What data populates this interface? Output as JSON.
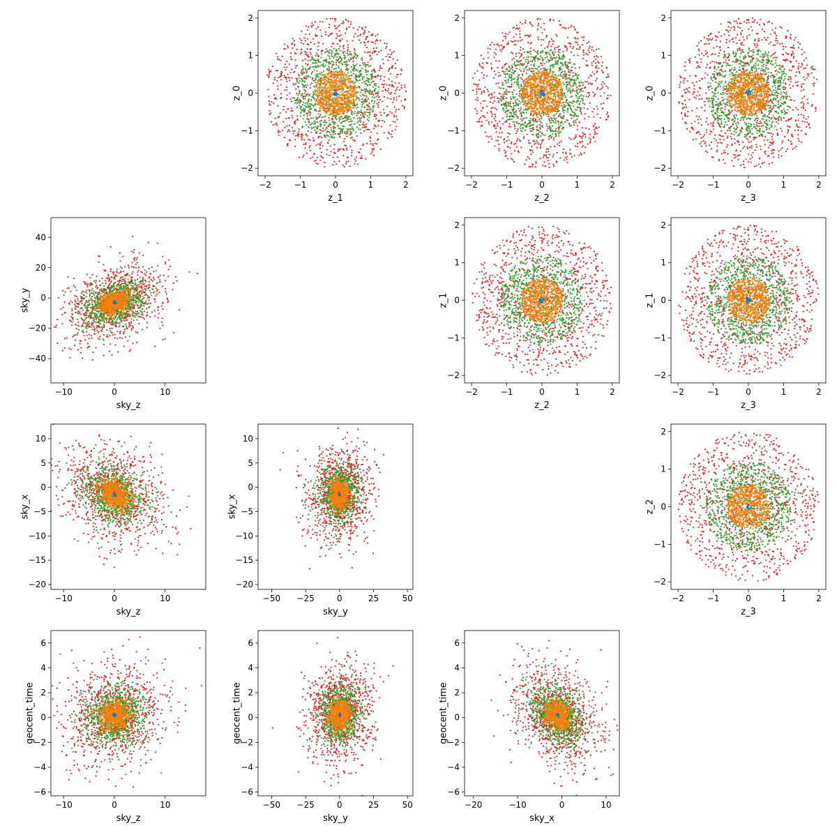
{
  "colors": {
    "series": [
      "#1f77b4",
      "#ff7f0e",
      "#2ca02c",
      "#d62728"
    ]
  },
  "chart_data": {
    "type": "scatter",
    "layout": "corner-plot",
    "grid": false,
    "series": [
      {
        "key": "s0",
        "color": "#1f77b4",
        "spread": 0.04,
        "count": 20
      },
      {
        "key": "s1",
        "color": "#ff7f0e",
        "spread": 0.3,
        "count": 700
      },
      {
        "key": "s2",
        "color": "#2ca02c",
        "spread": 0.6,
        "count": 800
      },
      {
        "key": "s3",
        "color": "#d62728",
        "spread": 1.0,
        "count": 1000
      }
    ],
    "panels": [
      {
        "id": "z0-z1",
        "row": 0,
        "col": 1,
        "x_label": "z_1",
        "y_label": "z_0",
        "xlim": [
          -2.2,
          2.2
        ],
        "ylim": [
          -2.2,
          2.2
        ],
        "xticks": [
          -2,
          -1,
          0,
          1,
          2
        ],
        "yticks": [
          -2,
          -1,
          0,
          1,
          2
        ],
        "shape": "disc",
        "center": [
          0,
          0
        ],
        "radius": 2.0
      },
      {
        "id": "z0-z2",
        "row": 0,
        "col": 2,
        "x_label": "z_2",
        "y_label": "z_0",
        "xlim": [
          -2.2,
          2.2
        ],
        "ylim": [
          -2.2,
          2.2
        ],
        "xticks": [
          -2,
          -1,
          0,
          1,
          2
        ],
        "yticks": [
          -2,
          -1,
          0,
          1,
          2
        ],
        "shape": "disc",
        "center": [
          0,
          0
        ],
        "radius": 2.0
      },
      {
        "id": "z0-z3",
        "row": 0,
        "col": 3,
        "x_label": "z_3",
        "y_label": "z_0",
        "xlim": [
          -2.2,
          2.2
        ],
        "ylim": [
          -2.2,
          2.2
        ],
        "xticks": [
          -2,
          -1,
          0,
          1,
          2
        ],
        "yticks": [
          -2,
          -1,
          0,
          1,
          2
        ],
        "shape": "disc",
        "center": [
          0,
          0
        ],
        "radius": 2.0
      },
      {
        "id": "skyy-skyz",
        "row": 1,
        "col": 0,
        "x_label": "sky_z",
        "y_label": "sky_y",
        "xlim": [
          -12.5,
          18
        ],
        "ylim": [
          -56,
          53
        ],
        "xticks": [
          -10,
          0,
          10
        ],
        "yticks": [
          -40,
          -20,
          0,
          20,
          40
        ],
        "shape": "blob",
        "center": [
          0,
          -3
        ],
        "scale": [
          5,
          13
        ],
        "corr": 0.35
      },
      {
        "id": "z1-z2",
        "row": 1,
        "col": 2,
        "x_label": "z_2",
        "y_label": "z_1",
        "xlim": [
          -2.2,
          2.2
        ],
        "ylim": [
          -2.2,
          2.2
        ],
        "xticks": [
          -2,
          -1,
          0,
          1,
          2
        ],
        "yticks": [
          -2,
          -1,
          0,
          1,
          2
        ],
        "shape": "disc",
        "center": [
          0,
          0
        ],
        "radius": 2.0
      },
      {
        "id": "z1-z3",
        "row": 1,
        "col": 3,
        "x_label": "z_3",
        "y_label": "z_1",
        "xlim": [
          -2.2,
          2.2
        ],
        "ylim": [
          -2.2,
          2.2
        ],
        "xticks": [
          -2,
          -1,
          0,
          1,
          2
        ],
        "yticks": [
          -2,
          -1,
          0,
          1,
          2
        ],
        "shape": "disc",
        "center": [
          0,
          0
        ],
        "radius": 2.0
      },
      {
        "id": "skyx-skyz",
        "row": 2,
        "col": 0,
        "x_label": "sky_z",
        "y_label": "sky_x",
        "xlim": [
          -12.5,
          18
        ],
        "ylim": [
          -21,
          13
        ],
        "xticks": [
          -10,
          0,
          10
        ],
        "yticks": [
          -20,
          -15,
          -10,
          -5,
          0,
          5,
          10
        ],
        "shape": "blob",
        "center": [
          0,
          -1.5
        ],
        "scale": [
          5,
          5
        ],
        "corr": -0.25
      },
      {
        "id": "skyx-skyy",
        "row": 2,
        "col": 1,
        "x_label": "sky_y",
        "y_label": "sky_x",
        "xlim": [
          -60,
          54
        ],
        "ylim": [
          -21,
          13
        ],
        "xticks": [
          -50,
          -25,
          0,
          25,
          50
        ],
        "yticks": [
          -20,
          -15,
          -10,
          -5,
          0,
          5,
          10
        ],
        "shape": "blob",
        "center": [
          0,
          -1.5
        ],
        "scale": [
          12,
          5
        ],
        "corr": 0.1
      },
      {
        "id": "z2-z3",
        "row": 2,
        "col": 3,
        "x_label": "z_3",
        "y_label": "z_2",
        "xlim": [
          -2.2,
          2.2
        ],
        "ylim": [
          -2.2,
          2.2
        ],
        "xticks": [
          -2,
          -1,
          0,
          1,
          2
        ],
        "yticks": [
          -2,
          -1,
          0,
          1,
          2
        ],
        "shape": "disc",
        "center": [
          0,
          0
        ],
        "radius": 2.0
      },
      {
        "id": "time-skyz",
        "row": 3,
        "col": 0,
        "x_label": "sky_z",
        "y_label": "geocent_time",
        "xlim": [
          -12.5,
          18
        ],
        "ylim": [
          -6.3,
          7
        ],
        "xticks": [
          -10,
          0,
          10
        ],
        "yticks": [
          -6,
          -4,
          -2,
          0,
          2,
          4,
          6
        ],
        "shape": "blob",
        "center": [
          0,
          0.2
        ],
        "scale": [
          5,
          2
        ],
        "corr": 0.1
      },
      {
        "id": "time-skyy",
        "row": 3,
        "col": 1,
        "x_label": "sky_y",
        "y_label": "geocent_time",
        "xlim": [
          -60,
          54
        ],
        "ylim": [
          -6.3,
          7
        ],
        "xticks": [
          -50,
          -25,
          0,
          25,
          50
        ],
        "yticks": [
          -6,
          -4,
          -2,
          0,
          2,
          4,
          6
        ],
        "shape": "blob",
        "center": [
          0,
          0.2
        ],
        "scale": [
          12,
          2
        ],
        "corr": 0.05
      },
      {
        "id": "time-skyx",
        "row": 3,
        "col": 2,
        "x_label": "sky_x",
        "y_label": "geocent_time",
        "xlim": [
          -22,
          13
        ],
        "ylim": [
          -6.3,
          7
        ],
        "xticks": [
          -20,
          -10,
          0,
          10
        ],
        "yticks": [
          -6,
          -4,
          -2,
          0,
          2,
          4,
          6
        ],
        "shape": "blob",
        "center": [
          -1,
          0.2
        ],
        "scale": [
          5,
          2
        ],
        "corr": -0.3
      }
    ]
  }
}
